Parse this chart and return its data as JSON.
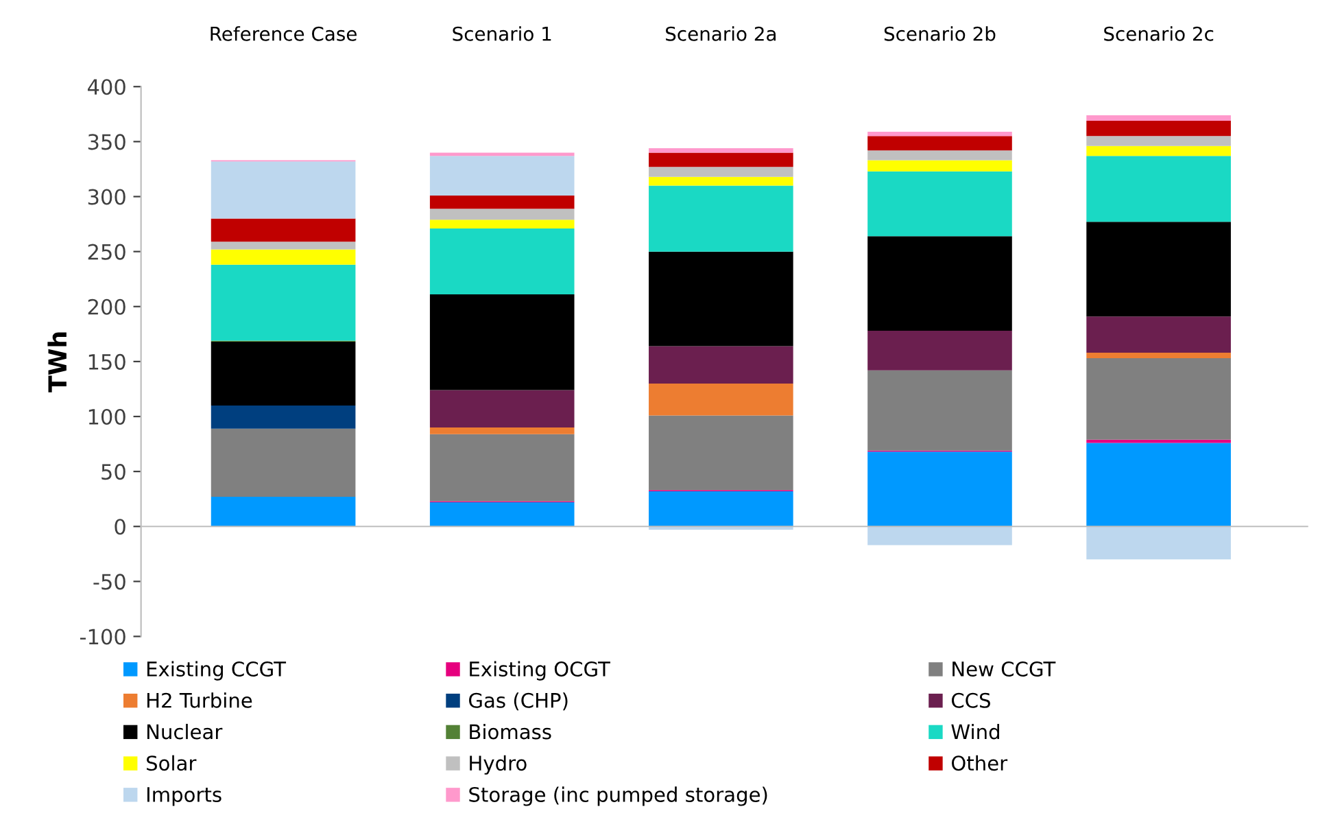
{
  "chart_data": {
    "type": "bar",
    "stacked": true,
    "ylabel": "TWh",
    "categories": [
      "Reference Case",
      "Scenario 1",
      "Scenario 2a",
      "Scenario 2b",
      "Scenario 2c"
    ],
    "ylim": [
      -100,
      400
    ],
    "yticks": [
      -100,
      -50,
      0,
      50,
      100,
      150,
      200,
      250,
      300,
      350,
      400
    ],
    "legend": "bottom",
    "series": [
      {
        "name": "Existing CCGT",
        "color": "#0099ff",
        "values": [
          27,
          22,
          32,
          68,
          76
        ]
      },
      {
        "name": "Existing OCGT",
        "color": "#e6007e",
        "values": [
          0,
          1,
          1,
          1,
          3
        ]
      },
      {
        "name": "New CCGT",
        "color": "#808080",
        "values": [
          62,
          61,
          68,
          73,
          74
        ]
      },
      {
        "name": "H2 Turbine",
        "color": "#ed7d31",
        "values": [
          0,
          6,
          29,
          0,
          5
        ]
      },
      {
        "name": "Gas (CHP)",
        "color": "#003f7f",
        "values": [
          21,
          0,
          0,
          0,
          0
        ]
      },
      {
        "name": "CCS",
        "color": "#6b1f4f",
        "values": [
          0,
          34,
          34,
          36,
          33
        ]
      },
      {
        "name": "Nuclear",
        "color": "#000000",
        "values": [
          58,
          87,
          86,
          86,
          86
        ]
      },
      {
        "name": "Biomass",
        "color": "#538135",
        "values": [
          1,
          0,
          0,
          0,
          0
        ]
      },
      {
        "name": "Wind",
        "color": "#1ad9c4",
        "values": [
          69,
          60,
          60,
          59,
          60
        ]
      },
      {
        "name": "Solar",
        "color": "#ffff00",
        "values": [
          14,
          8,
          8,
          10,
          9
        ]
      },
      {
        "name": "Hydro",
        "color": "#c0c0c0",
        "values": [
          7,
          10,
          9,
          9,
          9
        ]
      },
      {
        "name": "Other",
        "color": "#c00000",
        "values": [
          21,
          12,
          13,
          13,
          14
        ]
      },
      {
        "name": "Imports",
        "color": "#bdd7ee",
        "values": [
          52,
          36,
          -3,
          -17,
          -30
        ]
      },
      {
        "name": "Storage (inc pumped storage)",
        "color": "#ff99cc",
        "values": [
          1,
          3,
          4,
          4,
          5
        ]
      }
    ]
  }
}
